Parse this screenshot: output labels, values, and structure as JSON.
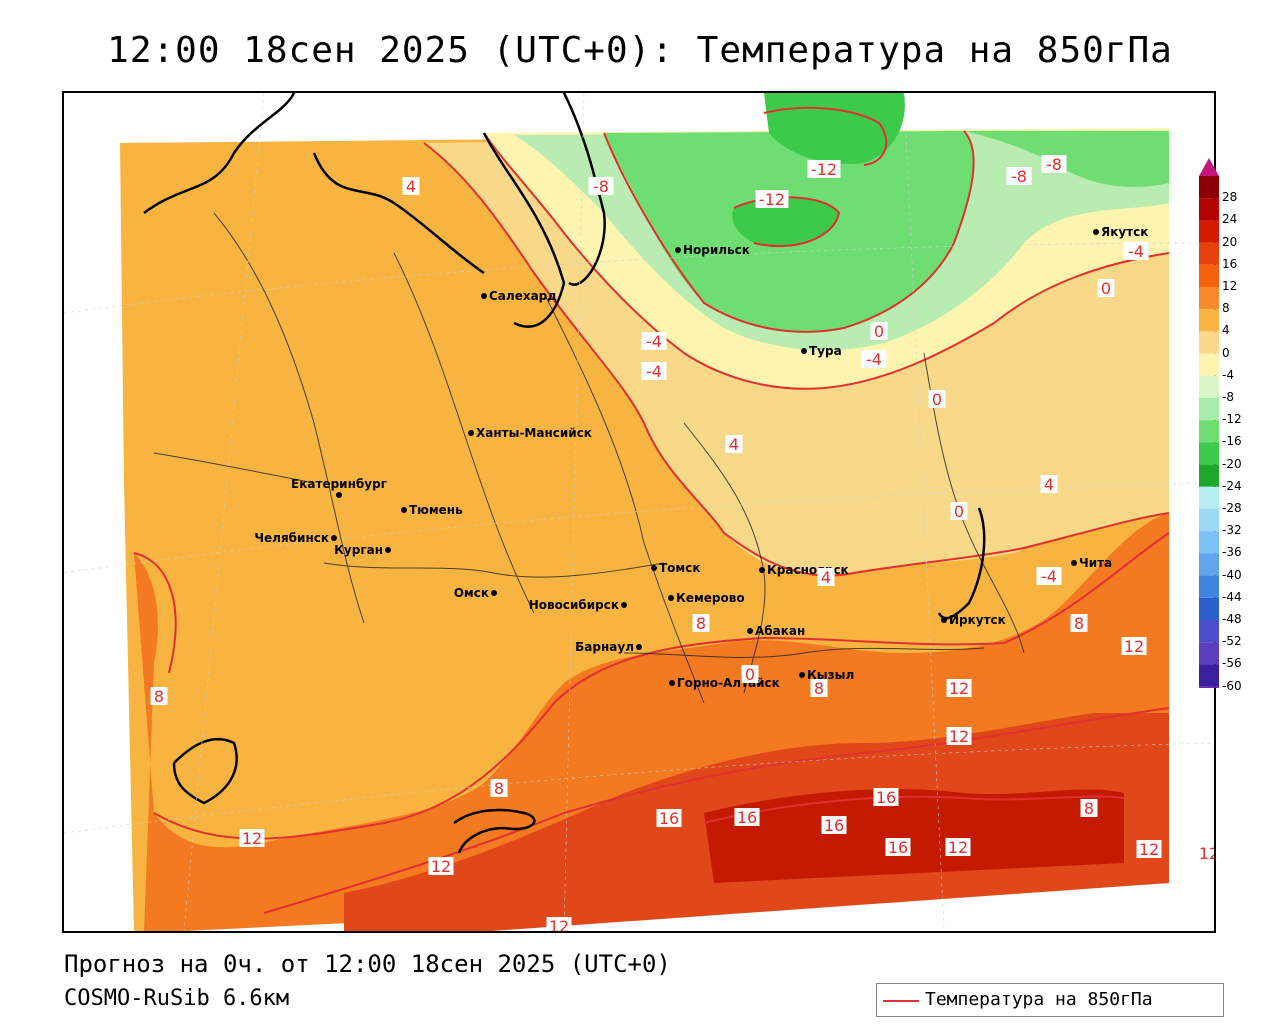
{
  "title": "12:00 18сен 2025 (UTC+0): Температура на 850гПа",
  "footer": {
    "forecast": "Прогноз на 0ч. от 12:00 18сен 2025 (UTC+0)",
    "model": "COSMO-RuSib 6.6км"
  },
  "legend": {
    "label": "Температура на 850гПа",
    "line_color": "#e03030"
  },
  "colorbar": {
    "labels": [
      "28",
      "24",
      "20",
      "16",
      "12",
      "8",
      "4",
      "0",
      "-4",
      "-8",
      "-12",
      "-16",
      "-20",
      "-24",
      "-28",
      "-32",
      "-36",
      "-40",
      "-44",
      "-48",
      "-52",
      "-56",
      "-60"
    ],
    "colors": [
      "#8b0000",
      "#b30000",
      "#d21a00",
      "#e8400c",
      "#f4620e",
      "#f78a2a",
      "#f8b440",
      "#fbd98a",
      "#fdf4b0",
      "#d8f5c8",
      "#a8ecaa",
      "#6ede73",
      "#3dc94a",
      "#1fa82b",
      "#b7ecf3",
      "#9bd9f5",
      "#7cc1f3",
      "#5fa6ec",
      "#3f84dd",
      "#2a60c8",
      "#4a4fc8",
      "#5b3dbd",
      "#3a1f9e",
      "#6f2ab8"
    ]
  },
  "cities": [
    {
      "name": "Салехард"
    },
    {
      "name": "Норильск"
    },
    {
      "name": "Тура"
    },
    {
      "name": "Якутск"
    },
    {
      "name": "Ханты-Мансийск"
    },
    {
      "name": "Екатеринбург"
    },
    {
      "name": "Тюмень"
    },
    {
      "name": "Челябинск"
    },
    {
      "name": "Курган"
    },
    {
      "name": "Омск"
    },
    {
      "name": "Новосибирск"
    },
    {
      "name": "Томск"
    },
    {
      "name": "Кемерово"
    },
    {
      "name": "Красноярск"
    },
    {
      "name": "Барнаул"
    },
    {
      "name": "Абакан"
    },
    {
      "name": "Горно-Алтайск"
    },
    {
      "name": "Кызыл"
    },
    {
      "name": "Иркутск"
    },
    {
      "name": "Чита"
    }
  ],
  "contour_labels": [
    "4",
    "-8",
    "-12",
    "-12",
    "-8",
    "-8",
    "-4",
    "-4",
    "0",
    "-4",
    "0",
    "-4",
    "0",
    "4",
    "0",
    "4",
    "-4",
    "4",
    "8",
    "0",
    "8",
    "12",
    "12",
    "8",
    "12",
    "8",
    "8",
    "12",
    "12",
    "16",
    "16",
    "16",
    "16",
    "16",
    "12",
    "12",
    "12",
    "12",
    "8"
  ]
}
